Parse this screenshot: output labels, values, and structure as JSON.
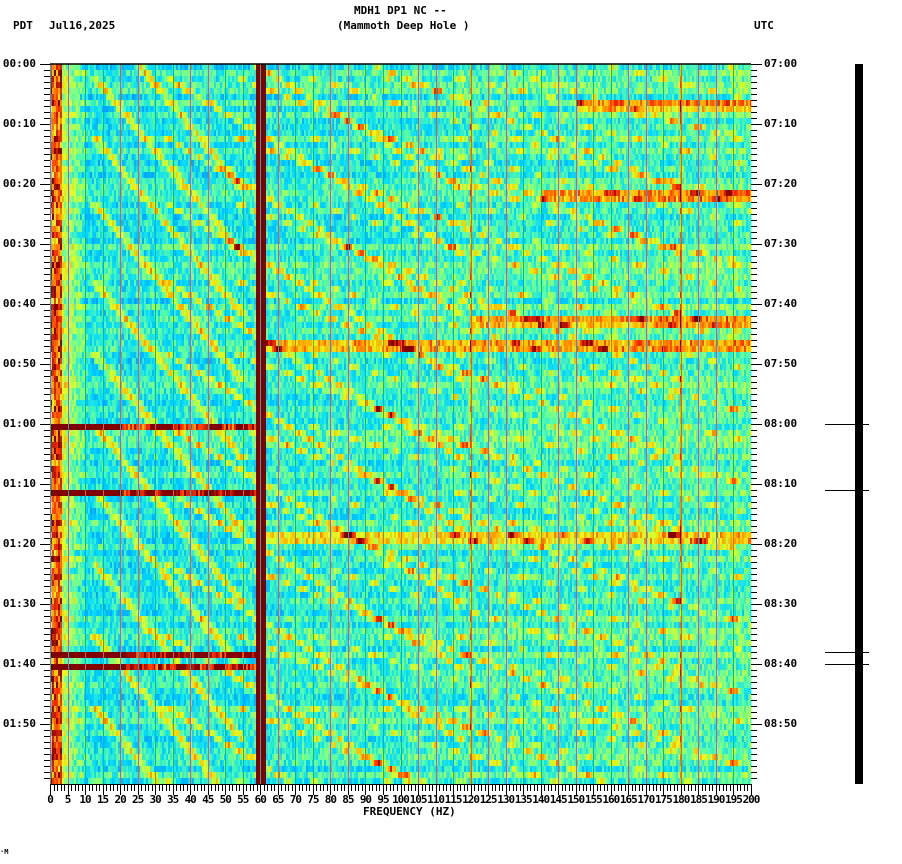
{
  "header": {
    "station": "MDH1 DP1 NC --",
    "site_name": "(Mammoth Deep Hole )",
    "left_tz": "PDT",
    "date": "Jul16,2025",
    "right_tz": "UTC"
  },
  "footer_mark": "·M",
  "chart_data": {
    "type": "heatmap",
    "title": "MDH1 DP1 NC -- (Mammoth Deep Hole ) spectrogram",
    "xlabel": "FREQUENCY (HZ)",
    "ylabel_left": "PDT",
    "ylabel_right": "UTC",
    "xlim": [
      0,
      200
    ],
    "x_ticks": [
      "0",
      "5",
      "10",
      "15",
      "20",
      "25",
      "30",
      "35",
      "40",
      "45",
      "50",
      "55",
      "60",
      "65",
      "70",
      "75",
      "80",
      "85",
      "90",
      "95",
      "100",
      "105",
      "110",
      "115",
      "120",
      "125",
      "130",
      "135",
      "140",
      "145",
      "150",
      "155",
      "160",
      "165",
      "170",
      "175",
      "180",
      "185",
      "190",
      "195",
      "200"
    ],
    "x_minor_step_hz": 1,
    "y_ticks_left": [
      "00:00",
      "00:10",
      "00:20",
      "00:30",
      "00:40",
      "00:50",
      "01:00",
      "01:10",
      "01:20",
      "01:30",
      "01:40",
      "01:50"
    ],
    "y_ticks_right": [
      "07:00",
      "07:10",
      "07:20",
      "07:30",
      "07:40",
      "07:50",
      "08:00",
      "08:10",
      "08:20",
      "08:30",
      "08:40",
      "08:50"
    ],
    "y_range_minutes": [
      0,
      120
    ],
    "y_minor_step_min": 1,
    "grid": {
      "vertical_every_hz": 5,
      "color": "#808080"
    },
    "colormap": [
      "#0040ff",
      "#0090ff",
      "#00d8ff",
      "#60ffa0",
      "#e0ff20",
      "#ffb000",
      "#ff3000",
      "#800000"
    ],
    "persistent_lines_hz": [
      {
        "freq": 60,
        "strength": "very strong",
        "color": "#800000"
      },
      {
        "freq": 120,
        "strength": "weak",
        "color": "#ff3000"
      },
      {
        "freq": 180,
        "strength": "weak",
        "color": "#ff3000"
      }
    ],
    "broadband_events_minutes": [
      {
        "t": 60.5,
        "extent_hz": [
          0,
          60
        ]
      },
      {
        "t": 71.5,
        "extent_hz": [
          0,
          60
        ]
      },
      {
        "t": 98.5,
        "extent_hz": [
          0,
          60
        ]
      },
      {
        "t": 100.3,
        "extent_hz": [
          0,
          60
        ]
      }
    ],
    "horizontal_bands_minutes": [
      {
        "t": 7,
        "extent_hz": [
          150,
          200
        ]
      },
      {
        "t": 22,
        "extent_hz": [
          140,
          200
        ]
      },
      {
        "t": 43,
        "extent_hz": [
          120,
          200
        ]
      },
      {
        "t": 47,
        "extent_hz": [
          60,
          200
        ]
      },
      {
        "t": 79,
        "extent_hz": [
          60,
          200
        ]
      }
    ],
    "description": "Curved gliding harmonic tones repeating roughly every 10-13 minutes, rising in frequency over time; strong 60 Hz power-line interference; low-frequency (<5 Hz) energy elevated throughout."
  },
  "trace_panel": {
    "event_marks_minutes": [
      60,
      71,
      98,
      100
    ]
  }
}
